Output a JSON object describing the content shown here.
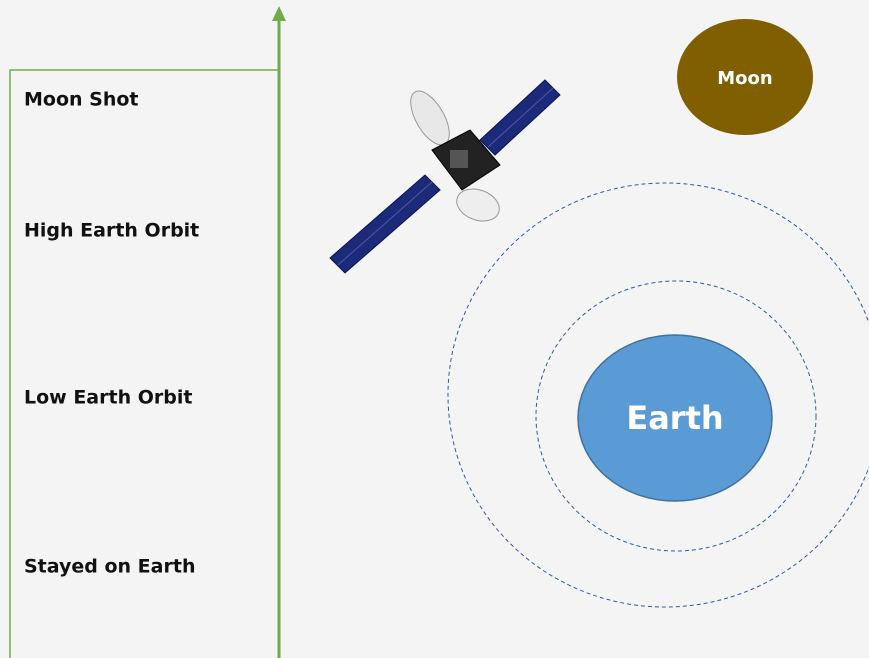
{
  "levels": [
    "Moon Shot",
    "High Earth Orbit",
    "Low Earth Orbit",
    "Stayed on Earth"
  ],
  "moon": {
    "label": "Moon"
  },
  "earth": {
    "label": "Earth"
  }
}
